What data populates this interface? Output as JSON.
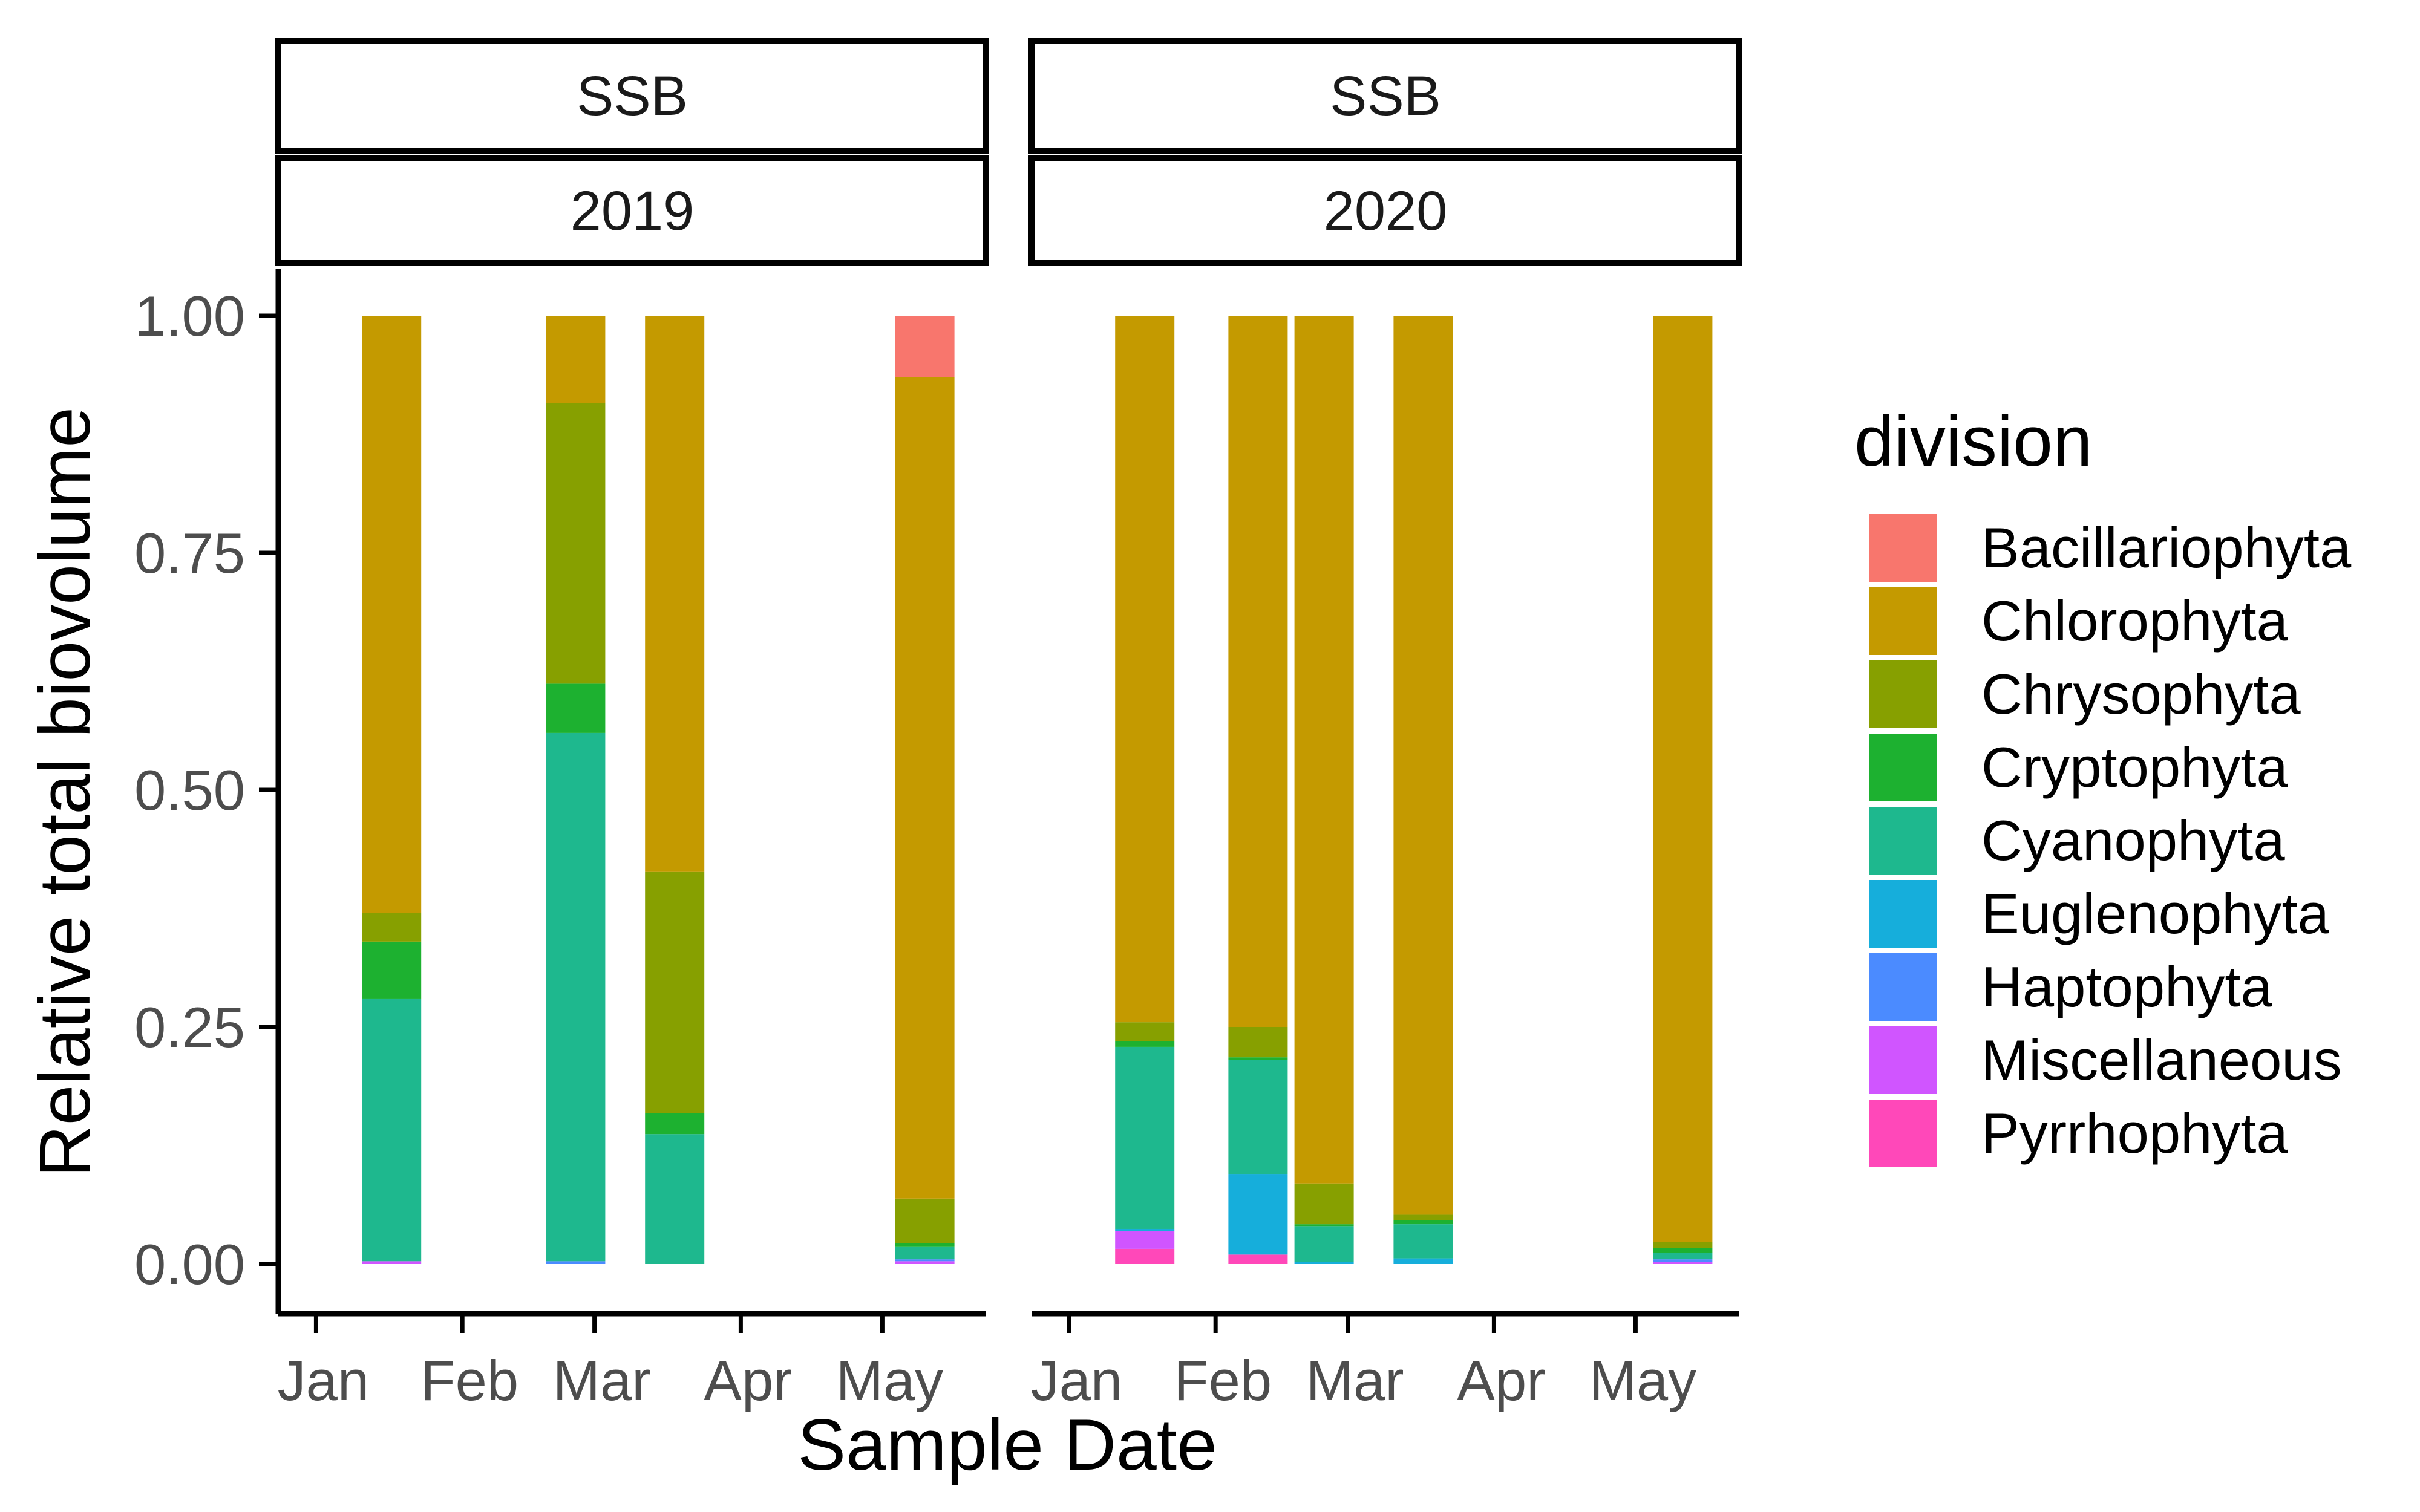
{
  "chart_data": {
    "type": "bar",
    "stacked": true,
    "position": "fill",
    "xlabel": "Sample Date",
    "ylabel": "Relative total biovolume",
    "ylim": [
      0,
      1
    ],
    "y_ticks": [
      "0.00",
      "0.25",
      "0.50",
      "0.75",
      "1.00"
    ],
    "x_ticks": [
      "Jan",
      "Feb",
      "Mar",
      "Apr",
      "May"
    ],
    "legend": {
      "title": "division",
      "position": "right",
      "entries": [
        {
          "name": "Bacillariophyta",
          "color": "#F8766D"
        },
        {
          "name": "Chlorophyta",
          "color": "#C49A00"
        },
        {
          "name": "Chrysophyta",
          "color": "#87A000"
        },
        {
          "name": "Cryptophyta",
          "color": "#1DB130"
        },
        {
          "name": "Cyanophyta",
          "color": "#1EB88E"
        },
        {
          "name": "Euglenophyta",
          "color": "#16AEDB"
        },
        {
          "name": "Haptophyta",
          "color": "#4B8BFF"
        },
        {
          "name": "Miscellaneous",
          "color": "#D055FF"
        },
        {
          "name": "Pyrrhophyta",
          "color": "#FF48B9"
        }
      ]
    },
    "panels": [
      {
        "strip_top": "SSB",
        "strip_bottom": "2019",
        "bars": [
          {
            "date": "2019-01-17",
            "segments": {
              "Miscellaneous": 0.003,
              "Cyanophyta": 0.277,
              "Cryptophyta": 0.06,
              "Chrysophyta": 0.03,
              "Chlorophyta": 0.63
            }
          },
          {
            "date": "2019-02-25",
            "segments": {
              "Haptophyta": 0.003,
              "Cyanophyta": 0.557,
              "Cryptophyta": 0.052,
              "Chrysophyta": 0.296,
              "Chlorophyta": 0.092
            }
          },
          {
            "date": "2019-03-18",
            "segments": {
              "Cyanophyta": 0.137,
              "Cryptophyta": 0.022,
              "Chrysophyta": 0.255,
              "Chlorophyta": 0.586
            }
          },
          {
            "date": "2019-05-10",
            "segments": {
              "Miscellaneous": 0.003,
              "Haptophyta": 0.002,
              "Cyanophyta": 0.013,
              "Cryptophyta": 0.004,
              "Chrysophyta": 0.047,
              "Chlorophyta": 0.866,
              "Bacillariophyta": 0.065
            }
          }
        ]
      },
      {
        "strip_top": "SSB",
        "strip_bottom": "2020",
        "bars": [
          {
            "date": "2020-01-17",
            "segments": {
              "Pyrrhophyta": 0.016,
              "Miscellaneous": 0.019,
              "Euglenophyta": 0.002,
              "Cyanophyta": 0.192,
              "Cryptophyta": 0.006,
              "Chrysophyta": 0.02,
              "Chlorophyta": 0.745
            }
          },
          {
            "date": "2020-02-10",
            "segments": {
              "Pyrrhophyta": 0.01,
              "Euglenophyta": 0.085,
              "Cyanophyta": 0.12,
              "Cryptophyta": 0.003,
              "Chrysophyta": 0.032,
              "Chlorophyta": 0.75
            }
          },
          {
            "date": "2020-02-24",
            "segments": {
              "Euglenophyta": 0.002,
              "Cyanophyta": 0.038,
              "Cryptophyta": 0.002,
              "Chrysophyta": 0.043,
              "Chlorophyta": 0.915
            }
          },
          {
            "date": "2020-03-16",
            "segments": {
              "Euglenophyta": 0.006,
              "Cyanophyta": 0.036,
              "Cryptophyta": 0.004,
              "Chrysophyta": 0.006,
              "Chlorophyta": 0.948
            }
          },
          {
            "date": "2020-05-10",
            "segments": {
              "Miscellaneous": 0.002,
              "Haptophyta": 0.003,
              "Cyanophyta": 0.007,
              "Cryptophyta": 0.005,
              "Chrysophyta": 0.006,
              "Chlorophyta": 0.977
            }
          }
        ]
      }
    ]
  }
}
